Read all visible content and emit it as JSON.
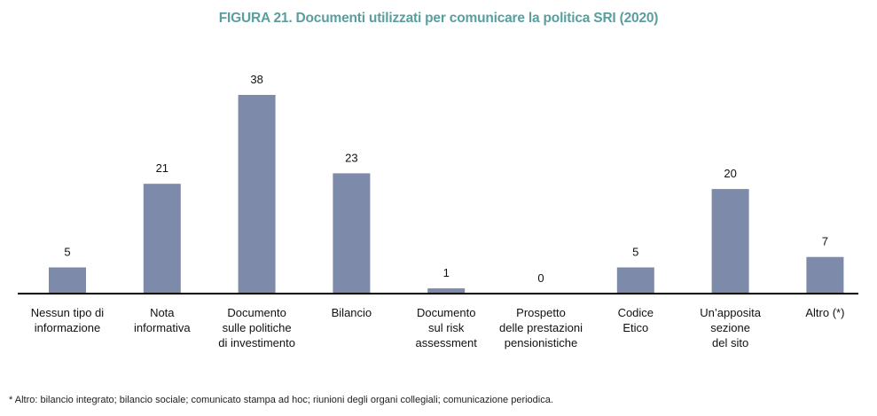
{
  "colors": {
    "title": "#5a9e9e",
    "bar": "#7d8aaa",
    "axis": "#000000"
  },
  "footnote": "* Altro: bilancio integrato; bilancio sociale; comunicato stampa ad hoc; riunioni degli organi collegiali; comunicazione periodica.",
  "chart_data": {
    "type": "bar",
    "title": "FIGURA 21. Documenti utilizzati per comunicare la politica SRI (2020)",
    "xlabel": "",
    "ylabel": "",
    "categories": [
      [
        "Nessun tipo di",
        "informazione"
      ],
      [
        "Nota",
        "informativa"
      ],
      [
        "Documento",
        "sulle politiche",
        "di investimento"
      ],
      [
        "Bilancio"
      ],
      [
        "Documento",
        "sul risk",
        "assessment"
      ],
      [
        "Prospetto",
        "delle prestazioni",
        "pensionistiche"
      ],
      [
        "Codice",
        "Etico"
      ],
      [
        "Un’apposita",
        "sezione",
        "del sito"
      ],
      [
        "Altro (*)"
      ]
    ],
    "values": [
      5,
      21,
      38,
      23,
      1,
      0,
      5,
      20,
      7
    ],
    "ylim": [
      0,
      38
    ],
    "grid": false,
    "data_labels": true
  }
}
